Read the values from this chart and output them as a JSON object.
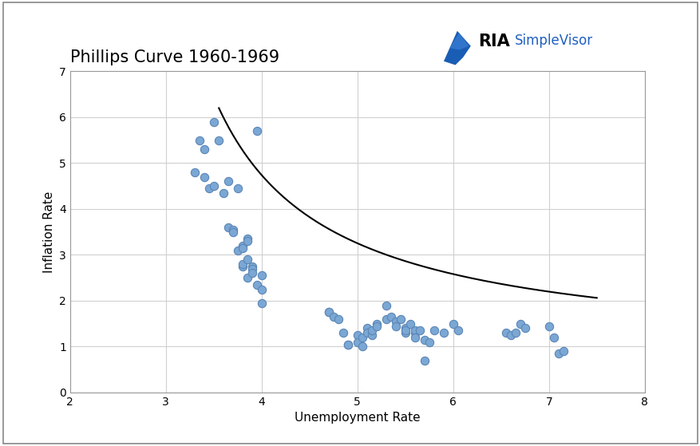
{
  "title": "Phillips Curve 1960-1969",
  "xlabel": "Unemployment Rate",
  "ylabel": "Inflation Rate",
  "xlim": [
    2,
    8
  ],
  "ylim": [
    0,
    7
  ],
  "xticks": [
    2,
    3,
    4,
    5,
    6,
    7,
    8
  ],
  "yticks": [
    0,
    1,
    2,
    3,
    4,
    5,
    6,
    7
  ],
  "scatter_color": "#7ba7d4",
  "scatter_edgecolor": "#5a85b5",
  "scatter_size": 55,
  "curve_color": "black",
  "background_color": "#ffffff",
  "grid_color": "#d0d0d0",
  "points": [
    [
      3.3,
      4.8
    ],
    [
      3.35,
      5.5
    ],
    [
      3.4,
      5.3
    ],
    [
      3.4,
      4.7
    ],
    [
      3.45,
      4.45
    ],
    [
      3.5,
      4.5
    ],
    [
      3.5,
      5.9
    ],
    [
      3.55,
      5.5
    ],
    [
      3.6,
      4.35
    ],
    [
      3.65,
      4.6
    ],
    [
      3.65,
      3.6
    ],
    [
      3.7,
      3.55
    ],
    [
      3.7,
      3.5
    ],
    [
      3.75,
      4.45
    ],
    [
      3.75,
      3.1
    ],
    [
      3.8,
      3.2
    ],
    [
      3.8,
      3.15
    ],
    [
      3.8,
      2.75
    ],
    [
      3.8,
      2.8
    ],
    [
      3.85,
      3.35
    ],
    [
      3.85,
      3.3
    ],
    [
      3.85,
      2.9
    ],
    [
      3.85,
      2.5
    ],
    [
      3.9,
      2.75
    ],
    [
      3.9,
      2.7
    ],
    [
      3.9,
      2.6
    ],
    [
      3.95,
      2.35
    ],
    [
      3.95,
      5.7
    ],
    [
      4.0,
      2.55
    ],
    [
      4.0,
      2.25
    ],
    [
      4.0,
      1.95
    ],
    [
      4.7,
      1.75
    ],
    [
      4.7,
      1.75
    ],
    [
      4.75,
      1.65
    ],
    [
      4.8,
      1.6
    ],
    [
      4.85,
      1.3
    ],
    [
      4.9,
      1.05
    ],
    [
      4.9,
      1.05
    ],
    [
      5.0,
      1.25
    ],
    [
      5.0,
      1.1
    ],
    [
      5.05,
      1.2
    ],
    [
      5.05,
      1.0
    ],
    [
      5.1,
      1.4
    ],
    [
      5.1,
      1.3
    ],
    [
      5.15,
      1.25
    ],
    [
      5.15,
      1.35
    ],
    [
      5.2,
      1.5
    ],
    [
      5.2,
      1.45
    ],
    [
      5.3,
      1.6
    ],
    [
      5.3,
      1.9
    ],
    [
      5.35,
      1.65
    ],
    [
      5.4,
      1.55
    ],
    [
      5.4,
      1.45
    ],
    [
      5.45,
      1.6
    ],
    [
      5.5,
      1.4
    ],
    [
      5.5,
      1.3
    ],
    [
      5.5,
      1.35
    ],
    [
      5.55,
      1.5
    ],
    [
      5.6,
      1.3
    ],
    [
      5.6,
      1.35
    ],
    [
      5.6,
      1.2
    ],
    [
      5.65,
      1.35
    ],
    [
      5.7,
      1.15
    ],
    [
      5.7,
      0.7
    ],
    [
      5.75,
      1.1
    ],
    [
      5.8,
      1.35
    ],
    [
      5.9,
      1.3
    ],
    [
      6.0,
      1.5
    ],
    [
      6.05,
      1.35
    ],
    [
      6.55,
      1.3
    ],
    [
      6.6,
      1.25
    ],
    [
      6.65,
      1.3
    ],
    [
      6.7,
      1.5
    ],
    [
      6.75,
      1.4
    ],
    [
      7.0,
      1.45
    ],
    [
      7.05,
      1.2
    ],
    [
      7.1,
      0.85
    ],
    [
      7.15,
      0.9
    ]
  ],
  "title_fontsize": 15,
  "axis_fontsize": 11,
  "tick_fontsize": 10,
  "curve_a": 6.5,
  "curve_b": 2.35,
  "curve_c": 0.8
}
